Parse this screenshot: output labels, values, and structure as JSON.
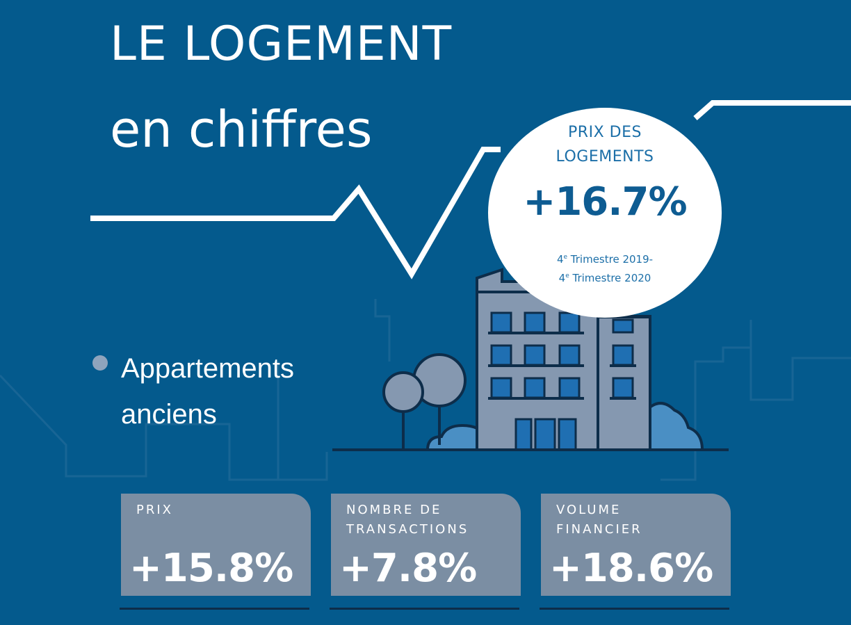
{
  "title": {
    "line1": "LE LOGEMENT",
    "line2": "en chiffres"
  },
  "highlight": {
    "label_line1": "PRIX DES",
    "label_line2": "LOGEMENTS",
    "value": "+16.7%",
    "period_line1_num": "4",
    "period_line1_sup": "e",
    "period_line1_rest": " Trimestre 2019-",
    "period_line2_num": "4",
    "period_line2_sup": "e",
    "period_line2_rest": " Trimestre 2020"
  },
  "category": {
    "line1": "Appartements",
    "line2": "anciens"
  },
  "stats": [
    {
      "label_line1": "PRIX",
      "label_line2": "",
      "value": "+15.8%"
    },
    {
      "label_line1": "NOMBRE DE",
      "label_line2": "TRANSACTIONS",
      "value": "+7.8%"
    },
    {
      "label_line1": "VOLUME",
      "label_line2": "FINANCIER",
      "value": "+18.6%"
    }
  ],
  "colors": {
    "background": "#045a8d",
    "card": "#7b8ea3",
    "accent": "#1c6fa8",
    "window": "#1f6fb2",
    "tree": "#8598b0"
  },
  "icons": [
    "trend-line",
    "building-illustration",
    "tree-icon",
    "bush-icon",
    "skyline-outline"
  ]
}
